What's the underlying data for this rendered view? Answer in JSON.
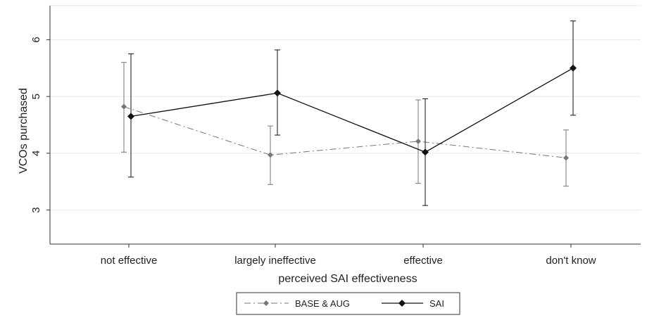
{
  "chart_data": {
    "type": "line",
    "xlabel": "perceived SAI effectiveness",
    "ylabel": "VCOs purchased",
    "categories": [
      "not effective",
      "largely ineffective",
      "effective",
      "don't know"
    ],
    "ylim": [
      2.4,
      6.6
    ],
    "yticks": [
      3,
      4,
      5,
      6
    ],
    "ytick_labels": [
      "3",
      "4",
      "5",
      "6"
    ],
    "grid": true,
    "legend_position": "bottom",
    "series": [
      {
        "name": "BASE & AUG",
        "color": "#777777",
        "line_style": "dash-dot",
        "marker": "diamond",
        "values": [
          4.82,
          3.97,
          4.21,
          3.92
        ],
        "ci_low": [
          4.02,
          3.45,
          3.47,
          3.42
        ],
        "ci_high": [
          5.6,
          4.48,
          4.94,
          4.41
        ]
      },
      {
        "name": "SAI",
        "color": "#111111",
        "line_style": "solid",
        "marker": "diamond",
        "values": [
          4.65,
          5.06,
          4.02,
          5.5
        ],
        "ci_low": [
          3.58,
          4.32,
          3.08,
          4.67
        ],
        "ci_high": [
          5.75,
          5.82,
          4.96,
          6.33
        ]
      }
    ]
  }
}
